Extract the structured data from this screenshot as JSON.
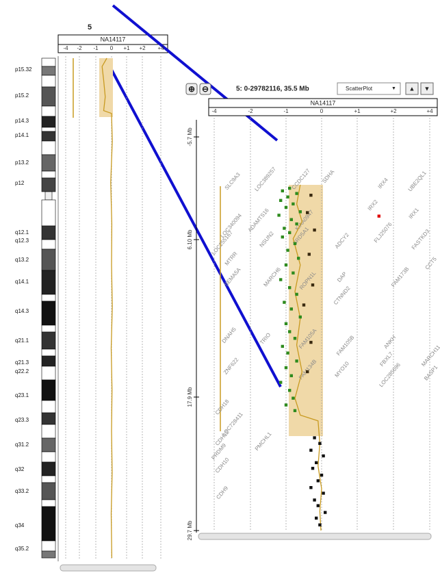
{
  "overview": {
    "chromosome": "5",
    "sample": "NA14117",
    "xticks": [
      {
        "value": -4,
        "label": "-4"
      },
      {
        "value": -2,
        "label": "-2"
      },
      {
        "value": -1,
        "label": "-1"
      },
      0,
      {
        "value": 1,
        "label": "+1"
      },
      {
        "value": 2,
        "label": "+2"
      },
      {
        "value": 4,
        "label": "+4"
      }
    ],
    "bands": [
      "p15.32",
      "p15.2",
      "p14.3",
      "p14.1",
      "p13.2",
      "p12",
      "q12.1",
      "q12.3",
      "q13.2",
      "q14.1",
      "q14.3",
      "q21.1",
      "q21.3",
      "q22.2",
      "q23.1",
      "q23.3",
      "q31.2",
      "q32",
      "q33.2",
      "q34",
      "q35.2"
    ],
    "trace": [
      [
        0,
        -0.3
      ],
      [
        3,
        -0.6
      ],
      [
        8,
        -0.5
      ],
      [
        14,
        -0.4
      ],
      [
        19,
        -0.5
      ],
      [
        20,
        0
      ],
      [
        30,
        0.05
      ],
      [
        45,
        -0.05
      ],
      [
        60,
        0.02
      ],
      [
        75,
        0
      ],
      [
        90,
        0.05
      ],
      [
        105,
        -0.02
      ],
      [
        120,
        0.03
      ],
      [
        135,
        0
      ],
      [
        150,
        0.04
      ],
      [
        165,
        -0.02
      ],
      [
        181,
        0.02
      ]
    ]
  },
  "detail": {
    "region": "5: 0-29782116, 35.5 Mb",
    "view": "ScatterPlot",
    "sample": "NA14117",
    "xticks": [
      {
        "value": -4,
        "label": "-4"
      },
      {
        "value": -2,
        "label": "-2"
      },
      {
        "value": -1,
        "label": "-1"
      },
      0,
      {
        "value": 1,
        "label": "+1"
      },
      {
        "value": 2,
        "label": "+2"
      },
      {
        "value": 4,
        "label": "+4"
      }
    ],
    "yticks": [
      {
        "value": -5.7,
        "label": "-5.7 Mb"
      },
      {
        "value": 6.1,
        "label": "6.10 Mb"
      },
      {
        "value": 17.9,
        "label": "17.9 Mb"
      },
      {
        "value": 29.7,
        "label": "29.7 Mb"
      }
    ],
    "genes": [
      "SLC9A3",
      "LOC389257",
      "CCDC127",
      "SDHA",
      "IRX4",
      "UBE2QL1",
      "LOC340094",
      "ADAMTS16",
      "KIAA0947",
      "IRX2",
      "IRX1",
      "LOC255167",
      "NSUN2",
      "SRD5A1",
      "MTRR",
      "ADCY2",
      "FLJ25076",
      "FASTKD3",
      "SEMA5A",
      "MARCH6",
      "ROPN1L",
      "DAP",
      "CTNND2",
      "FAM173B",
      "CCT5",
      "DNAH5",
      "TRIO",
      "FAM105A",
      "FAM105B",
      "ANKH",
      "ZNF622",
      "FAM134B",
      "MYO10",
      "FBXL7",
      "LOC285696",
      "MARCH11",
      "BASP1",
      "CDH18",
      "LOC728411",
      "PMCHL1",
      "CDH12",
      "PRDM9",
      "CDH10",
      "CDH9"
    ],
    "series": [
      {
        "color": "#2e8b1e",
        "points": [
          [
            0.2,
            -0.9
          ],
          [
            0.5,
            -1.1
          ],
          [
            0.8,
            -0.7
          ],
          [
            1.2,
            -0.95
          ],
          [
            1.6,
            -1.15
          ],
          [
            2.0,
            -0.8
          ],
          [
            2.4,
            -1.0
          ],
          [
            2.9,
            -0.6
          ],
          [
            3.3,
            -1.2
          ],
          [
            3.8,
            -0.85
          ],
          [
            4.3,
            -0.7
          ],
          [
            4.8,
            -1.05
          ],
          [
            5.3,
            -0.9
          ],
          [
            5.8,
            -1.1
          ],
          [
            6.4,
            -0.75
          ],
          [
            6.9,
            -0.95
          ],
          [
            7.5,
            -0.65
          ],
          [
            8.0,
            -1.0
          ],
          [
            8.6,
            -0.8
          ],
          [
            9.1,
            -1.15
          ],
          [
            9.7,
            -0.9
          ],
          [
            10.2,
            -0.7
          ],
          [
            10.8,
            -1.05
          ],
          [
            11.3,
            -0.85
          ],
          [
            11.9,
            -0.6
          ],
          [
            12.4,
            -1.0
          ],
          [
            13.0,
            -0.9
          ],
          [
            13.5,
            -0.75
          ],
          [
            14.1,
            -1.1
          ],
          [
            14.6,
            -0.95
          ],
          [
            15.2,
            -0.7
          ],
          [
            15.7,
            -1.0
          ],
          [
            16.3,
            -0.85
          ],
          [
            16.8,
            -1.15
          ],
          [
            17.4,
            -0.9
          ],
          [
            18.0,
            -0.8
          ],
          [
            18.6,
            -1.0
          ],
          [
            19.1,
            -0.75
          ]
        ]
      },
      {
        "color": "#3a2a10",
        "points": [
          [
            1.0,
            -0.3
          ],
          [
            3.0,
            -0.4
          ],
          [
            5.0,
            -0.2
          ],
          [
            7.2,
            -0.35
          ],
          [
            9.5,
            -0.25
          ],
          [
            11.0,
            -0.5
          ],
          [
            13.8,
            -0.3
          ],
          [
            16.0,
            -0.4
          ]
        ]
      },
      {
        "color": "#111111",
        "points": [
          [
            21.5,
            -0.2
          ],
          [
            22.0,
            -0.05
          ],
          [
            22.6,
            -0.3
          ],
          [
            23.1,
            0.05
          ],
          [
            23.7,
            -0.15
          ],
          [
            24.2,
            -0.25
          ],
          [
            24.8,
            0.0
          ],
          [
            25.3,
            -0.1
          ],
          [
            25.9,
            -0.3
          ],
          [
            26.4,
            0.05
          ],
          [
            27.0,
            -0.2
          ],
          [
            27.5,
            -0.1
          ],
          [
            28.1,
            0.1
          ],
          [
            28.6,
            -0.15
          ],
          [
            29.2,
            -0.05
          ]
        ]
      },
      {
        "color": "#e00000",
        "points": [
          [
            3.4,
            1.6
          ]
        ]
      }
    ],
    "trace": [
      [
        -0.2,
        -0.6
      ],
      [
        2,
        -0.7
      ],
      [
        4,
        -0.55
      ],
      [
        6,
        -0.8
      ],
      [
        8,
        -0.6
      ],
      [
        10,
        -0.75
      ],
      [
        12,
        -0.6
      ],
      [
        14,
        -0.7
      ],
      [
        16,
        -0.55
      ],
      [
        18,
        -0.75
      ],
      [
        19.5,
        -0.6
      ],
      [
        20,
        -0.1
      ],
      [
        22,
        -0.05
      ],
      [
        24,
        -0.1
      ],
      [
        26,
        0
      ],
      [
        28,
        -0.05
      ],
      [
        29.7,
        -0.02
      ]
    ]
  }
}
